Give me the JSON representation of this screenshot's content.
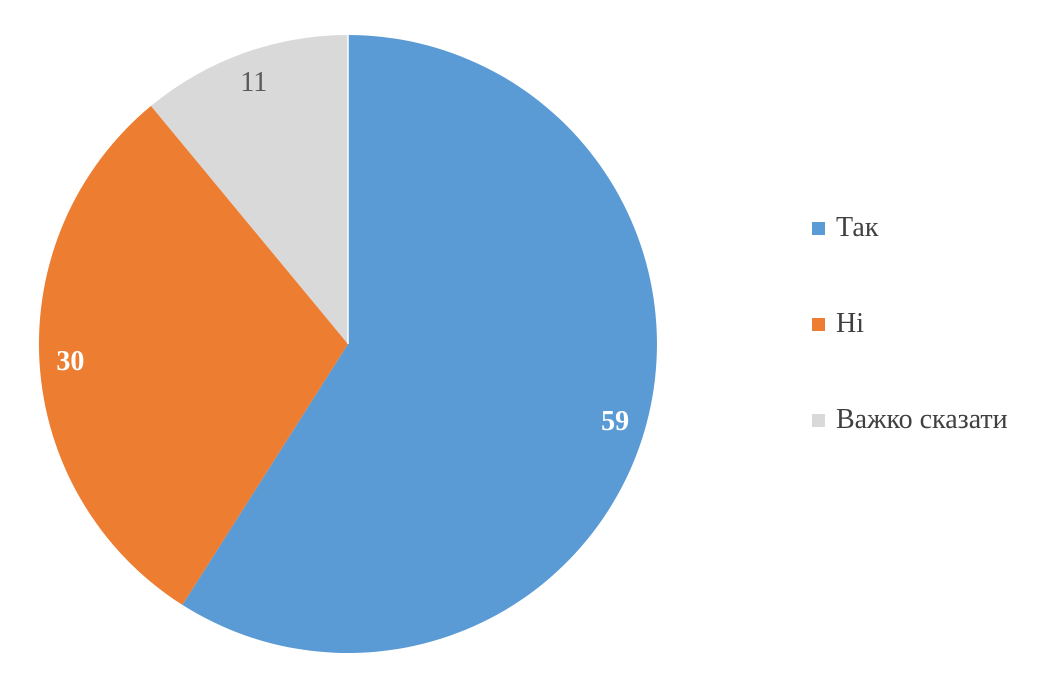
{
  "chart_data": {
    "type": "pie",
    "title": "",
    "labels": [
      "Так",
      "Ні",
      "Важко сказати"
    ],
    "values": [
      59,
      30,
      11
    ],
    "colors": [
      "#5B9BD5",
      "#ED7D31",
      "#D9D9D9"
    ],
    "data_labels": [
      "59",
      "30",
      "11"
    ],
    "data_label_colors": [
      "#FFFFFF",
      "#FFFFFF",
      "#595959"
    ],
    "data_label_weights": [
      "bold",
      "bold",
      "normal"
    ],
    "start_angle_deg": 0,
    "direction": "clockwise",
    "legend_position": "right",
    "label_radius_ratio": 0.9,
    "background_color": "#FFFFFF",
    "legend_text_color": "#404040",
    "seam_color": "#FFFFFF"
  }
}
